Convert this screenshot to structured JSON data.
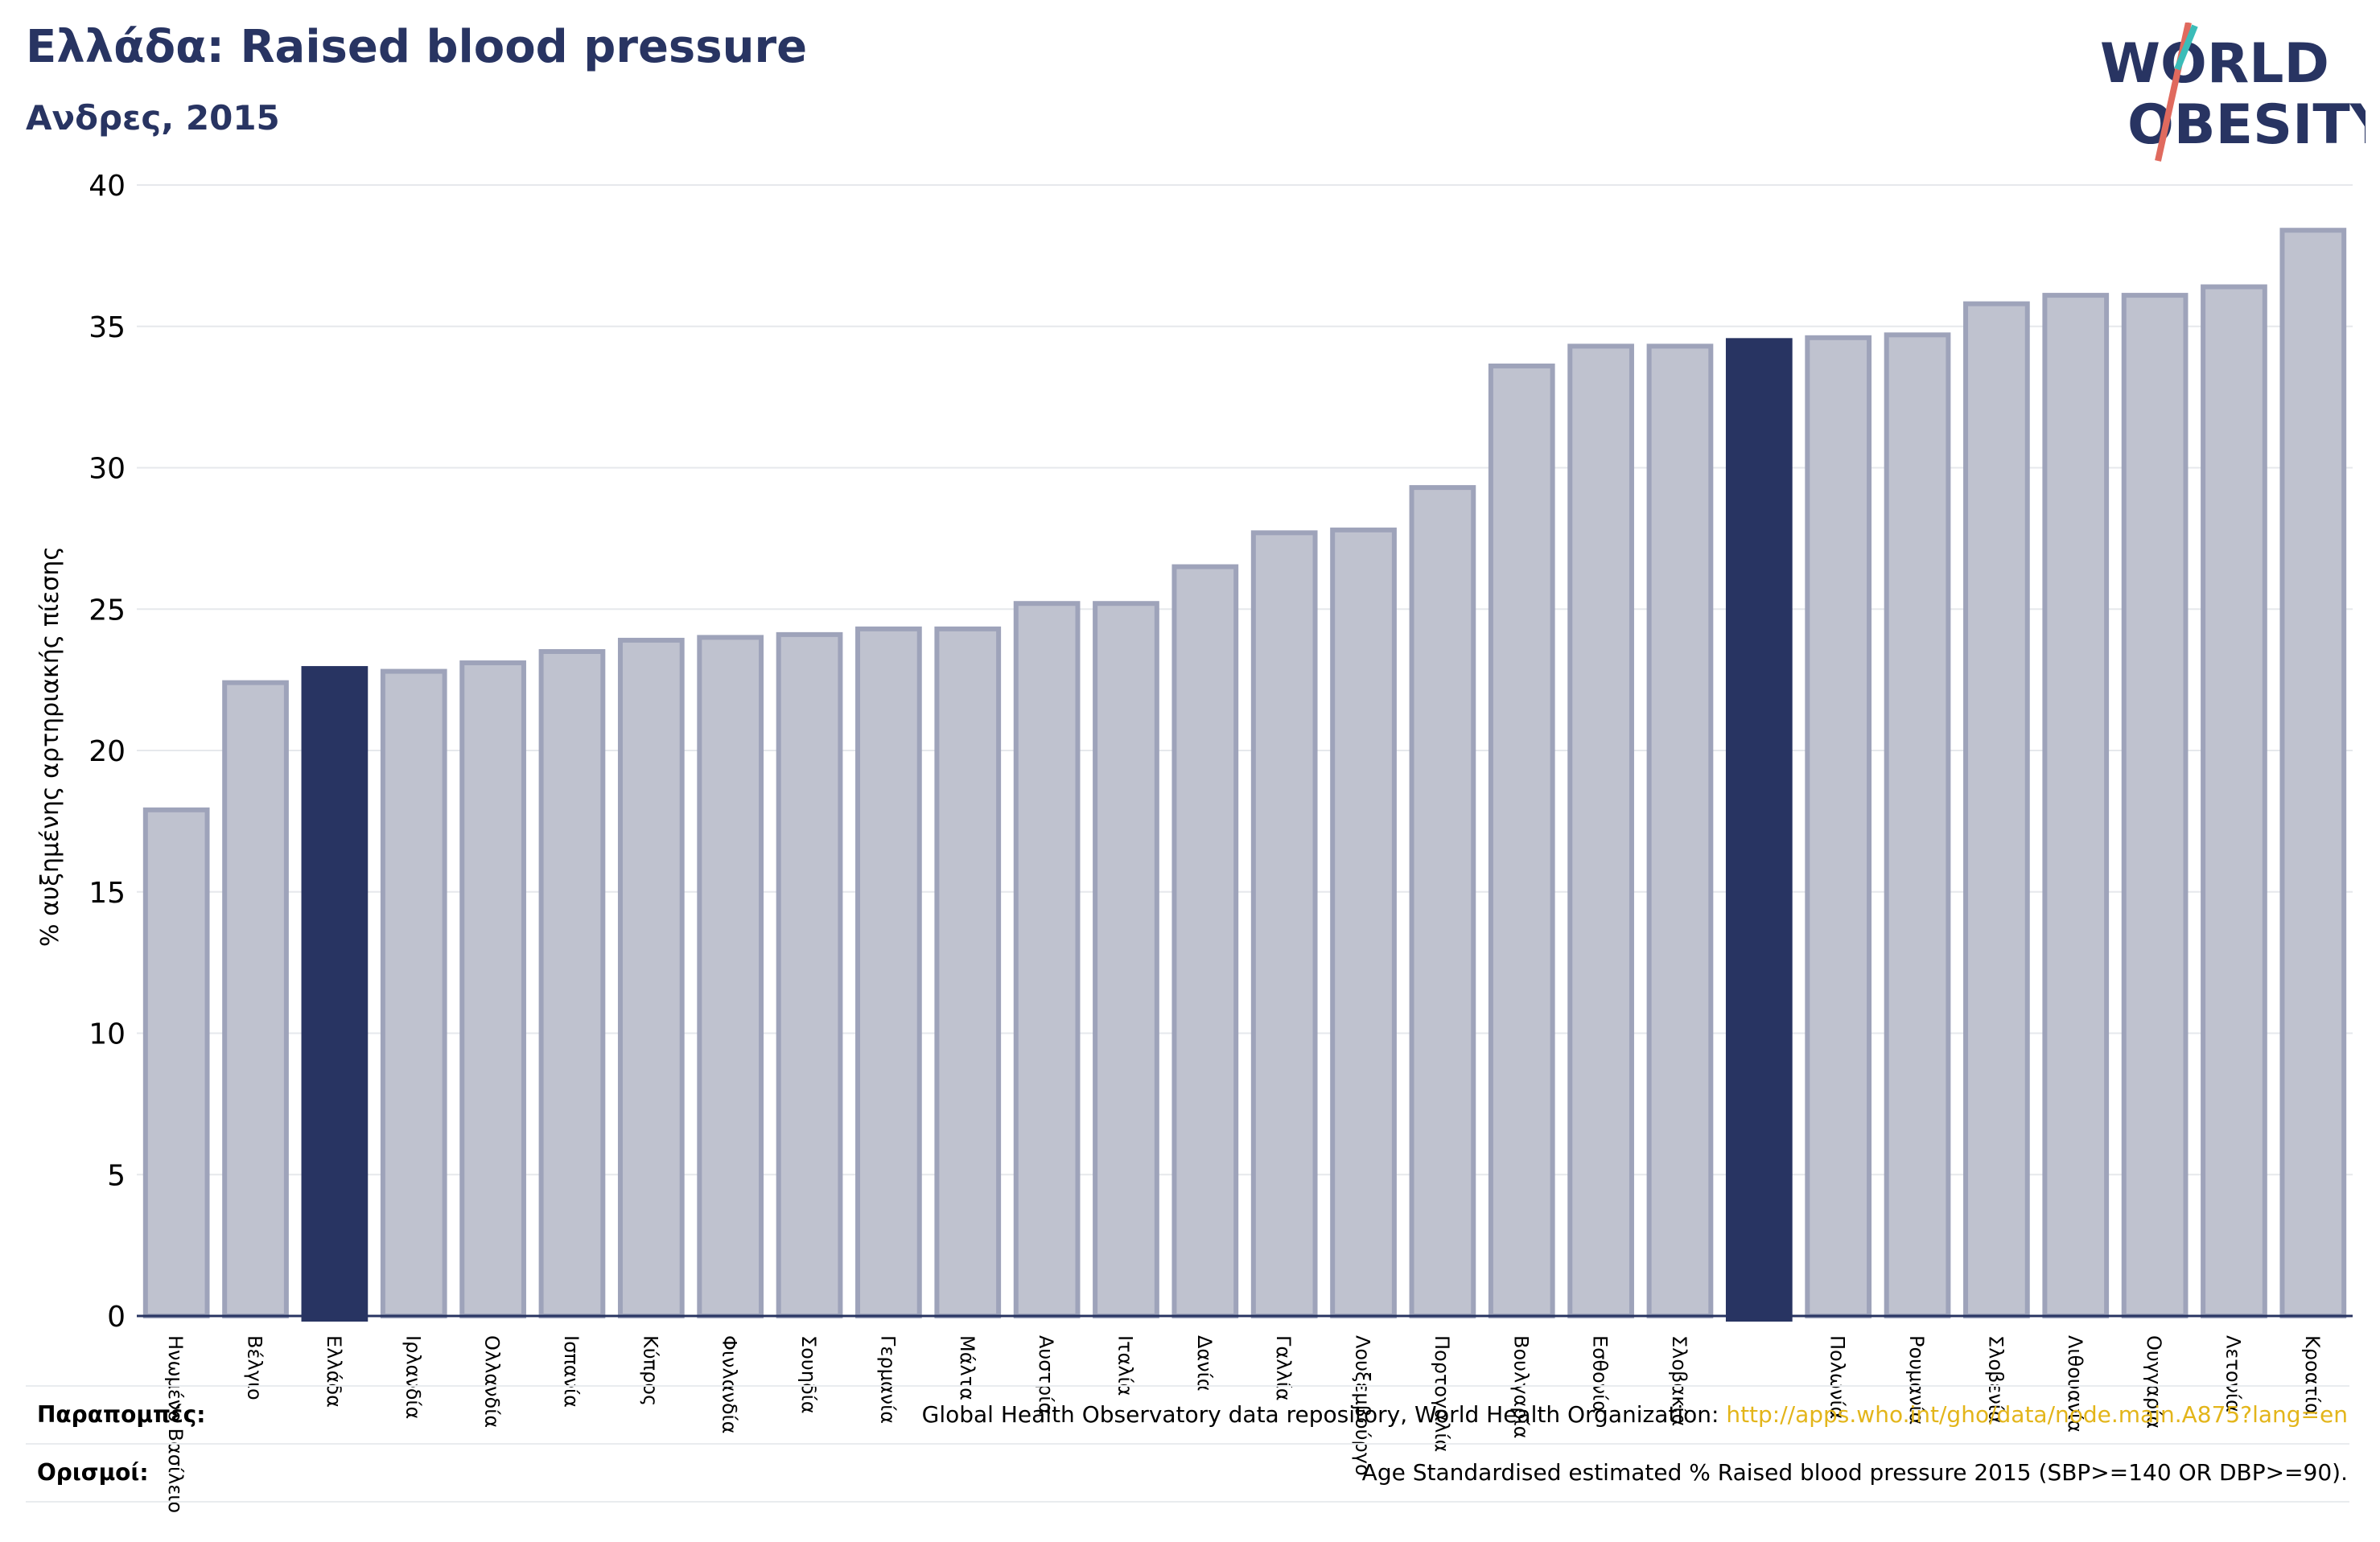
{
  "title": "Ελλάδα: Raised blood pressure",
  "subtitle": "Ανδρες, 2015",
  "logo": {
    "line1": "WORLD",
    "line2": "OBESITY"
  },
  "footer": {
    "references_label": "Παραπομπές:",
    "references_text": "Global Health Observatory data repository, World Health Organization: ",
    "references_link": "http://apps.who.int/gho/data/node.main.A875?lang=en",
    "definitions_label": "Ορισμοί:",
    "definitions_text": "Age Standardised estimated % Raised blood pressure 2015 (SBP>=140 OR DBP>=90)."
  },
  "colors": {
    "bar": "#bfc2cf",
    "bar_outline": "#9ea3ba",
    "highlight": "#283462",
    "title": "#283462",
    "gridline": "#e6e8ec",
    "axis": "#283462",
    "link": "#e3b51a"
  },
  "chart_data": {
    "type": "bar",
    "ylabel": "% αυξημένης αρτηριακής πίεσης",
    "ylim": [
      0,
      40
    ],
    "yticks": [
      0,
      5,
      10,
      15,
      20,
      25,
      30,
      35,
      40
    ],
    "grid": true,
    "categories": [
      "Ηνωμένο Βασίλειο",
      "Βέλγιο",
      "Ελλάδα",
      "Ιρλανδία",
      "Ολλανδία",
      "Ισπανία",
      "Κύπρος",
      "Φινλανδία",
      "Σουηδία",
      "Γερμανία",
      "Μάλτα",
      "Αυστρία",
      "Ιταλία",
      "Δανία",
      "Γαλλία",
      "Λουξεμβούργο",
      "Πορτογαλία",
      "Βουλγαρία",
      "Εσθονία",
      "Σλοβακία",
      "",
      "Πολωνία",
      "Ρουμανία",
      "Σλοβενία",
      "Λιθουανία",
      "Ουγγαρία",
      "Λετονία",
      "Κροατία"
    ],
    "values": [
      17.9,
      22.4,
      22.9,
      22.8,
      23.1,
      23.5,
      23.9,
      24.0,
      24.1,
      24.3,
      24.3,
      25.2,
      25.2,
      26.5,
      27.7,
      27.8,
      29.3,
      33.6,
      34.3,
      34.3,
      34.5,
      34.6,
      34.7,
      35.8,
      36.1,
      36.1,
      36.4,
      38.4
    ],
    "highlighted": [
      2,
      20
    ]
  }
}
